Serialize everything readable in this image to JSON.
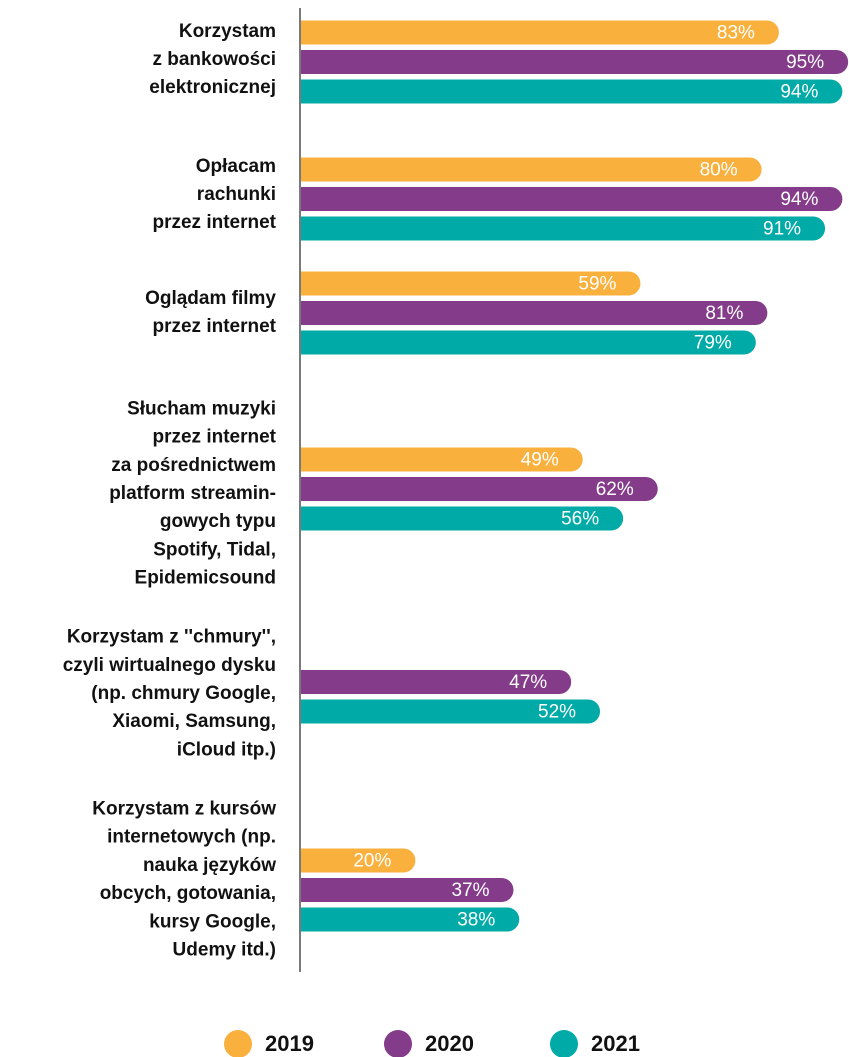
{
  "chart_data": {
    "type": "bar",
    "orientation": "horizontal",
    "categories": [
      [
        "Korzystam",
        "z bankowości",
        "elektronicznej"
      ],
      [
        "Opłacam",
        "rachunki",
        "przez internet"
      ],
      [
        "Oglądam filmy",
        "przez internet"
      ],
      [
        "Słucham muzyki",
        "przez internet",
        "za pośrednictwem",
        "platform streamin-",
        "gowych typu",
        "Spotify, Tidal,",
        "Epidemicsound"
      ],
      [
        "Korzystam z ''chmury'',",
        "czyli wirtualnego dysku",
        "(np. chmury Google,",
        "Xiaomi, Samsung,",
        "iCloud itp.)"
      ],
      [
        "Korzystam z kursów",
        "internetowych (np.",
        "nauka języków",
        "obcych, gotowania,",
        "kursy Google,",
        "Udemy itd.)"
      ]
    ],
    "series": [
      {
        "name": "2019",
        "color": "#f9b03c",
        "values": [
          83,
          80,
          59,
          49,
          null,
          20
        ],
        "value_labels": [
          "83%",
          "80%",
          "59%",
          "49%",
          null,
          "20%"
        ]
      },
      {
        "name": "2020",
        "color": "#843b8a",
        "values": [
          95,
          94,
          81,
          62,
          47,
          37
        ],
        "value_labels": [
          "95%",
          "94%",
          "81%",
          "62%",
          "47%",
          "37%"
        ]
      },
      {
        "name": "2021",
        "color": "#00aaa6",
        "values": [
          94,
          91,
          79,
          56,
          52,
          38
        ],
        "value_labels": [
          "94%",
          "91%",
          "79%",
          "56%",
          "52%",
          "38%"
        ]
      }
    ]
  }
}
